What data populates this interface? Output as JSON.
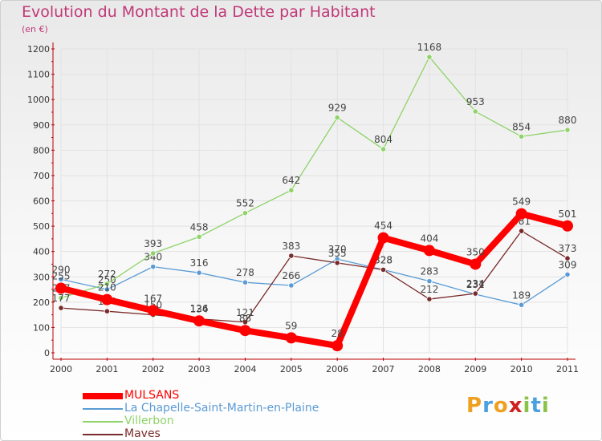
{
  "chart_data": {
    "type": "line",
    "title": "Evolution du Montant de la Dette par Habitant",
    "unit_label": "(en €)",
    "x": [
      "2000",
      "2001",
      "2002",
      "2003",
      "2004",
      "2005",
      "2006",
      "2007",
      "2008",
      "2009",
      "2010",
      "2011"
    ],
    "ylim": [
      0,
      1200
    ],
    "yticks": [
      0,
      100,
      200,
      300,
      400,
      500,
      600,
      700,
      800,
      900,
      1000,
      1100,
      1200
    ],
    "grid": true,
    "legend_position": "bottom-left",
    "series": [
      {
        "name": "La Chapelle-Saint-Martin-en-Plaine",
        "color": "#5b9bd5",
        "values": [
          290,
          250,
          340,
          316,
          278,
          266,
          370,
          328,
          283,
          231,
          189,
          309
        ]
      },
      {
        "name": "Villerbon",
        "color": "#8fd36a",
        "values": [
          217,
          272,
          393,
          458,
          552,
          642,
          929,
          804,
          1168,
          953,
          854,
          880
        ]
      },
      {
        "name": "Maves",
        "color": "#7a2a2a",
        "values": [
          177,
          164,
          150,
          134,
          121,
          383,
          355,
          328,
          212,
          234,
          481,
          373
        ]
      },
      {
        "name": "MULSANS",
        "color": "#ff0000",
        "values": [
          255,
          210,
          167,
          126,
          88,
          59,
          28,
          454,
          404,
          350,
          549,
          501
        ]
      }
    ]
  },
  "legend": [
    {
      "label": "MULSANS",
      "color": "#ff0000"
    },
    {
      "label": "La Chapelle-Saint-Martin-en-Plaine",
      "color": "#5b9bd5"
    },
    {
      "label": "Villerbon",
      "color": "#8fd36a"
    },
    {
      "label": "Maves",
      "color": "#7a2a2a"
    }
  ],
  "logo": {
    "letters": [
      "P",
      "r",
      "o",
      "x",
      "i",
      "t",
      "i"
    ],
    "colors": [
      "#f0a020",
      "#4aa0e0",
      "#f0a020",
      "#d02020",
      "#8bc34a",
      "#4aa0e0",
      "#8bc34a"
    ]
  }
}
